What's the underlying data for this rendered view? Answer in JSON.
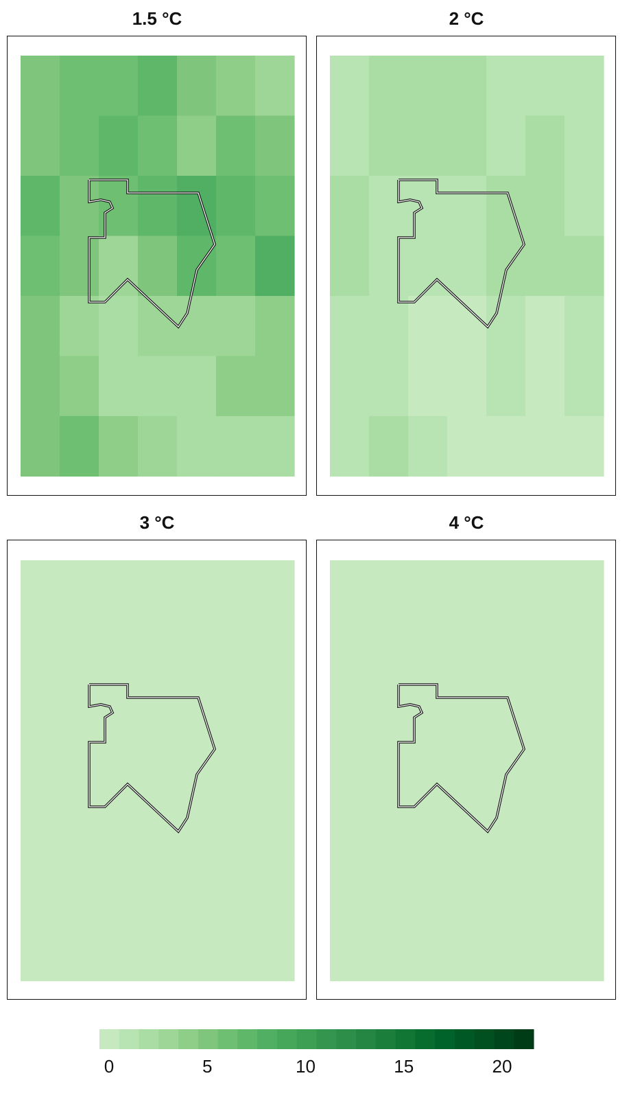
{
  "panels": [
    {
      "title": "1.5 °C",
      "grid": [
        [
          5.5,
          6.0,
          6.0,
          7.5,
          5.5,
          4.5,
          3.5
        ],
        [
          5.0,
          6.0,
          7.5,
          6.5,
          4.5,
          6.5,
          5.0
        ],
        [
          7.0,
          5.5,
          6.5,
          7.0,
          8.0,
          7.5,
          6.0
        ],
        [
          6.5,
          5.5,
          3.5,
          5.5,
          7.0,
          6.5,
          8.0
        ],
        [
          5.5,
          3.0,
          2.5,
          3.0,
          3.0,
          3.0,
          4.0
        ],
        [
          5.0,
          4.0,
          2.5,
          2.0,
          2.0,
          4.0,
          4.0
        ],
        [
          5.0,
          6.0,
          4.0,
          3.0,
          2.5,
          2.5,
          2.5
        ]
      ]
    },
    {
      "title": "2 °C",
      "grid": [
        [
          1.0,
          2.0,
          2.0,
          2.0,
          1.0,
          1.0,
          1.0
        ],
        [
          1.0,
          2.0,
          2.0,
          2.0,
          1.0,
          2.0,
          1.0
        ],
        [
          2.0,
          1.0,
          1.0,
          1.0,
          2.0,
          2.0,
          1.0
        ],
        [
          2.0,
          1.0,
          1.0,
          1.0,
          2.0,
          2.0,
          2.0
        ],
        [
          1.0,
          1.0,
          0.5,
          0.5,
          1.0,
          0.5,
          1.0
        ],
        [
          1.0,
          1.0,
          0.5,
          0.5,
          1.0,
          0.5,
          1.0
        ],
        [
          1.0,
          2.0,
          1.5,
          0.5,
          0.5,
          0.5,
          0.5
        ]
      ]
    },
    {
      "title": "3 °C",
      "grid": [
        [
          0.5,
          0.5,
          0.5,
          0.5,
          0.5,
          0.5,
          0.5
        ],
        [
          0.5,
          0.5,
          0.5,
          0.5,
          0.5,
          0.5,
          0.5
        ],
        [
          0.5,
          0.5,
          0.5,
          0.5,
          0.5,
          0.5,
          0.5
        ],
        [
          0.5,
          0.5,
          0.5,
          0.5,
          0.5,
          0.5,
          0.5
        ],
        [
          0.5,
          0.5,
          0.5,
          0.5,
          0.5,
          0.5,
          0.5
        ],
        [
          0.5,
          0.5,
          0.5,
          0.5,
          0.5,
          0.5,
          0.5
        ],
        [
          0.5,
          0.5,
          0.5,
          0.5,
          0.5,
          0.5,
          0.5
        ]
      ]
    },
    {
      "title": "4 °C",
      "grid": [
        [
          0.5,
          0.5,
          0.5,
          0.5,
          0.5,
          0.5,
          0.5
        ],
        [
          0.5,
          0.5,
          0.5,
          0.5,
          0.5,
          0.5,
          0.5
        ],
        [
          0.5,
          0.5,
          0.5,
          0.5,
          0.5,
          0.5,
          0.5
        ],
        [
          0.5,
          0.5,
          0.5,
          0.5,
          0.5,
          0.5,
          0.5
        ],
        [
          0.5,
          0.5,
          0.5,
          0.5,
          0.5,
          0.5,
          0.5
        ],
        [
          0.5,
          0.5,
          0.5,
          0.5,
          0.5,
          0.5,
          0.5
        ],
        [
          0.5,
          0.5,
          0.5,
          0.5,
          0.5,
          0.5,
          0.5
        ]
      ]
    }
  ],
  "colorbar": {
    "min": 0,
    "max": 22,
    "tick_labels": [
      "0",
      "5",
      "10",
      "15",
      "20"
    ],
    "tick_values": [
      0,
      5,
      10,
      15,
      20
    ],
    "colors": [
      "#c7e9c0",
      "#b8e3b2",
      "#aadda4",
      "#9dd696",
      "#8ece88",
      "#7fc67c",
      "#6fbf72",
      "#5fb86a",
      "#50af62",
      "#46a75b",
      "#3d9f54",
      "#34964e",
      "#2c8e48",
      "#248642",
      "#1b7e3b",
      "#117634",
      "#066d2e",
      "#00632a",
      "#005925",
      "#005020",
      "#00461c",
      "#003d17"
    ]
  }
}
